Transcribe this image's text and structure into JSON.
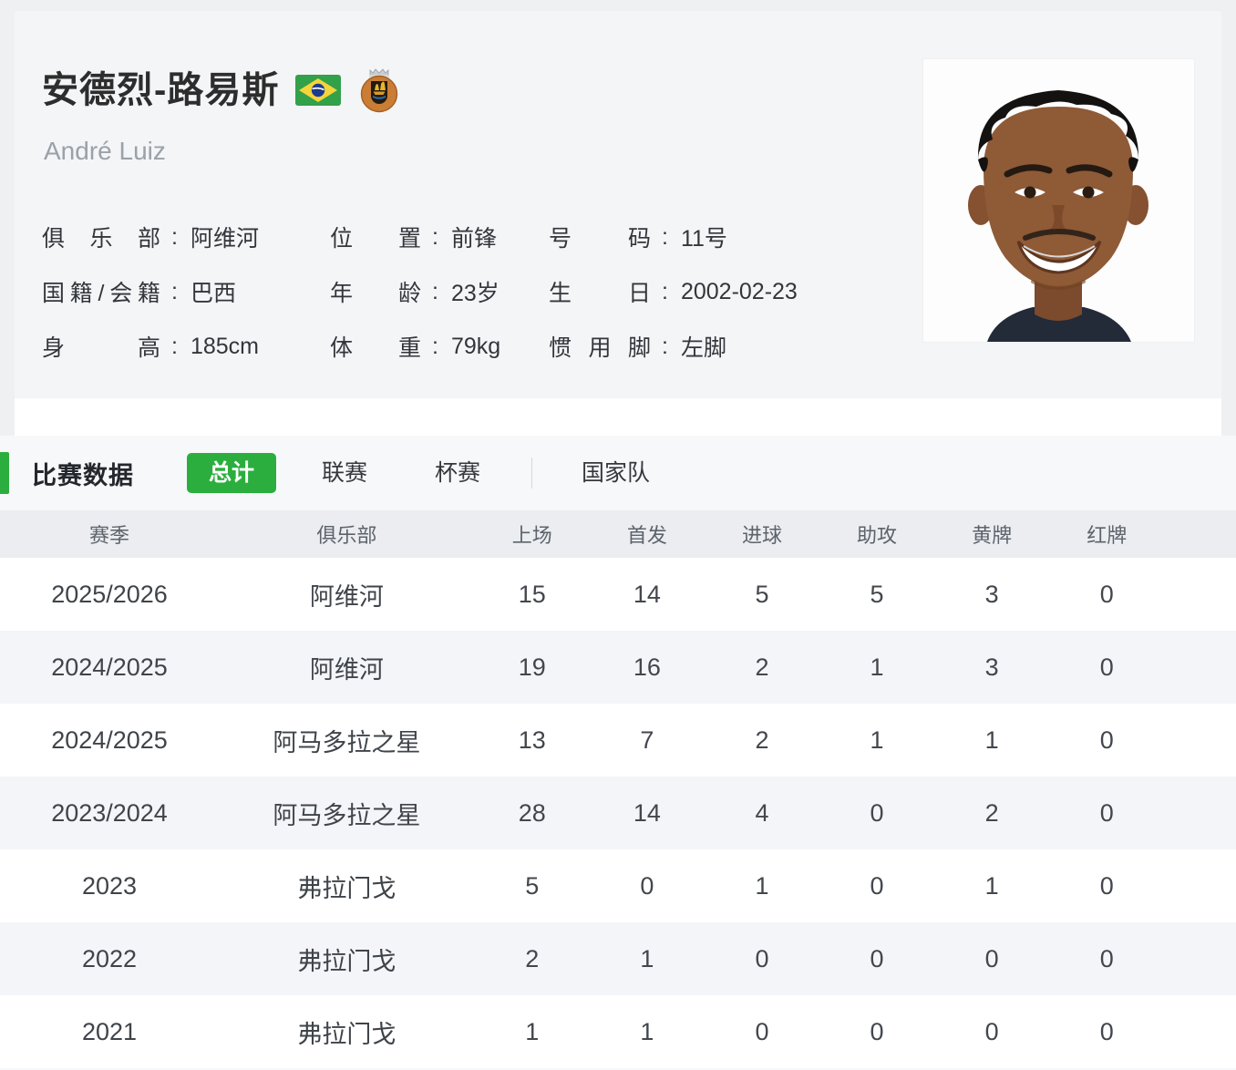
{
  "accent_color": "#2bae3d",
  "player": {
    "name_cn": "安德烈-路易斯",
    "name_en": "André Luiz",
    "flag_icon": "brazil-flag",
    "badge_icon": "rio-ave-club-badge",
    "info_rows": [
      [
        {
          "key": "club",
          "label": "俱乐部",
          "value": "阿维河"
        },
        {
          "key": "position",
          "label": "位置",
          "value": "前锋"
        },
        {
          "key": "number",
          "label": "号码",
          "value": "11号"
        }
      ],
      [
        {
          "key": "nationality",
          "label": "国籍/会籍",
          "value": "巴西"
        },
        {
          "key": "age",
          "label": "年龄",
          "value": "23岁"
        },
        {
          "key": "birthday",
          "label": "生日",
          "value": "2002-02-23"
        }
      ],
      [
        {
          "key": "height",
          "label": "身高",
          "value": "185cm"
        },
        {
          "key": "weight",
          "label": "体重",
          "value": "79kg"
        },
        {
          "key": "foot",
          "label": "惯用脚",
          "value": "左脚"
        }
      ]
    ]
  },
  "stats": {
    "section_title": "比赛数据",
    "tabs": [
      {
        "key": "total",
        "label": "总计",
        "active": true,
        "divider_before": false
      },
      {
        "key": "league",
        "label": "联赛",
        "active": false,
        "divider_before": false
      },
      {
        "key": "cup",
        "label": "杯赛",
        "active": false,
        "divider_before": false
      },
      {
        "key": "national",
        "label": "国家队",
        "active": false,
        "divider_before": true
      }
    ],
    "table": {
      "headers": [
        "赛季",
        "俱乐部",
        "上场",
        "首发",
        "进球",
        "助攻",
        "黄牌",
        "红牌"
      ],
      "rows": [
        [
          "2025/2026",
          "阿维河",
          "15",
          "14",
          "5",
          "5",
          "3",
          "0"
        ],
        [
          "2024/2025",
          "阿维河",
          "19",
          "16",
          "2",
          "1",
          "3",
          "0"
        ],
        [
          "2024/2025",
          "阿马多拉之星",
          "13",
          "7",
          "2",
          "1",
          "1",
          "0"
        ],
        [
          "2023/2024",
          "阿马多拉之星",
          "28",
          "14",
          "4",
          "0",
          "2",
          "0"
        ],
        [
          "2023",
          "弗拉门戈",
          "5",
          "0",
          "1",
          "0",
          "1",
          "0"
        ],
        [
          "2022",
          "弗拉门戈",
          "2",
          "1",
          "0",
          "0",
          "0",
          "0"
        ],
        [
          "2021",
          "弗拉门戈",
          "1",
          "1",
          "0",
          "0",
          "0",
          "0"
        ]
      ]
    }
  }
}
